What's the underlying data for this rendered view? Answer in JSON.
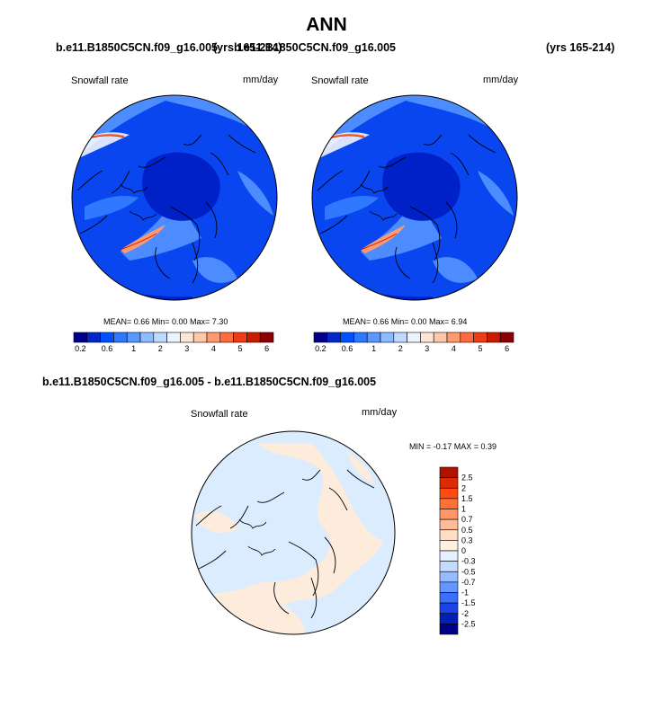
{
  "title": "ANN",
  "top_case": "b.e11.B1850C5CN.f09_g16.005",
  "top_yrs_left": "(yrs 165-214)",
  "top_control": "b.e11.B1850C5CN.f09_g16.005",
  "top_yrs_right": "(yrs 165-214)",
  "diff_title": "b.e11.B1850C5CN.f09_g16.005 - b.e11.B1850C5CN.f09_g16.005",
  "panels": {
    "left": {
      "variable": "Snowfall rate",
      "units": "mm/day",
      "stats": "MEAN=  0.66  Min=   0.00  Max=   7.30"
    },
    "right": {
      "variable": "Snowfall rate",
      "units": "mm/day",
      "stats": "MEAN=  0.66  Min=   0.00  Max=   6.94"
    },
    "diff": {
      "variable": "Snowfall rate",
      "units": "mm/day",
      "stats": "MIN =  -0.17 MAX =   0.39"
    }
  },
  "colorbar_top": {
    "labels": [
      "0.2",
      "0.6",
      "1",
      "2",
      "3",
      "4",
      "5",
      "6"
    ],
    "colors": [
      "#00008b",
      "#0028c8",
      "#0050ff",
      "#2f78ff",
      "#5a98ff",
      "#8cbcff",
      "#c0daff",
      "#eaf4ff",
      "#ffe6d4",
      "#ffc8a8",
      "#ff9a70",
      "#ff6c40",
      "#ee3c14",
      "#cc1a00",
      "#8b0000"
    ]
  },
  "colorbar_diff": {
    "labels": [
      "2.5",
      "2",
      "1.5",
      "1",
      "0.7",
      "0.5",
      "0.3",
      "0",
      "-0.3",
      "-0.5",
      "-0.7",
      "-1",
      "-1.5",
      "-2",
      "-2.5"
    ],
    "colors": [
      "#b01200",
      "#dd2a00",
      "#ff4a14",
      "#ff7032",
      "#ff9664",
      "#ffbc96",
      "#ffdcc4",
      "#fff0e2",
      "#e2f0ff",
      "#c0dcff",
      "#94bcff",
      "#6496ff",
      "#3a6eff",
      "#1a44e8",
      "#0020b8",
      "#000088"
    ]
  },
  "map_colors": {
    "background_blue": "#0a46f0",
    "dark_blue": "#0020c8",
    "light_blue": "#4c8cff",
    "diff_light_blue": "#dcecff",
    "diff_peach": "#fdebdc"
  }
}
